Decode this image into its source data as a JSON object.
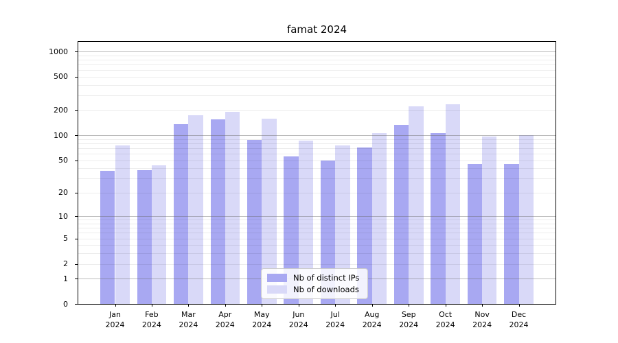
{
  "title": "famat 2024",
  "chart_data": {
    "type": "bar",
    "title": "famat 2024",
    "xlabel": "",
    "ylabel": "",
    "yscale": "log1p",
    "ylim": [
      0,
      1300
    ],
    "grid": true,
    "legend_position": "lower center",
    "categories": [
      "Jan",
      "Feb",
      "Mar",
      "Apr",
      "May",
      "Jun",
      "Jul",
      "Aug",
      "Sep",
      "Oct",
      "Nov",
      "Dec"
    ],
    "category_year": "2024",
    "series": [
      {
        "name": "Nb of distinct IPs",
        "color": "#a8a8f2",
        "values": [
          37,
          38,
          135,
          154,
          88,
          56,
          50,
          71,
          133,
          107,
          45,
          45
        ]
      },
      {
        "name": "Nb of downloads",
        "color": "#d9d9f8",
        "values": [
          75,
          43,
          175,
          192,
          158,
          87,
          75,
          107,
          220,
          235,
          96,
          101
        ]
      }
    ],
    "y_ticks": [
      0,
      1,
      2,
      5,
      10,
      20,
      50,
      100,
      200,
      500,
      1000
    ],
    "y_major_gridlines": [
      1,
      10,
      100,
      1000
    ],
    "y_minor_gridlines": [
      2,
      3,
      4,
      5,
      6,
      7,
      8,
      9,
      20,
      30,
      40,
      50,
      60,
      70,
      80,
      90,
      200,
      300,
      400,
      500,
      600,
      700,
      800,
      900
    ],
    "bar_width_fraction": 0.4
  },
  "colors": {
    "background": "#ffffff",
    "spine": "#000000",
    "major_grid": "rgba(105,105,105,0.45)",
    "minor_grid": "rgba(0,0,0,0.075)"
  }
}
